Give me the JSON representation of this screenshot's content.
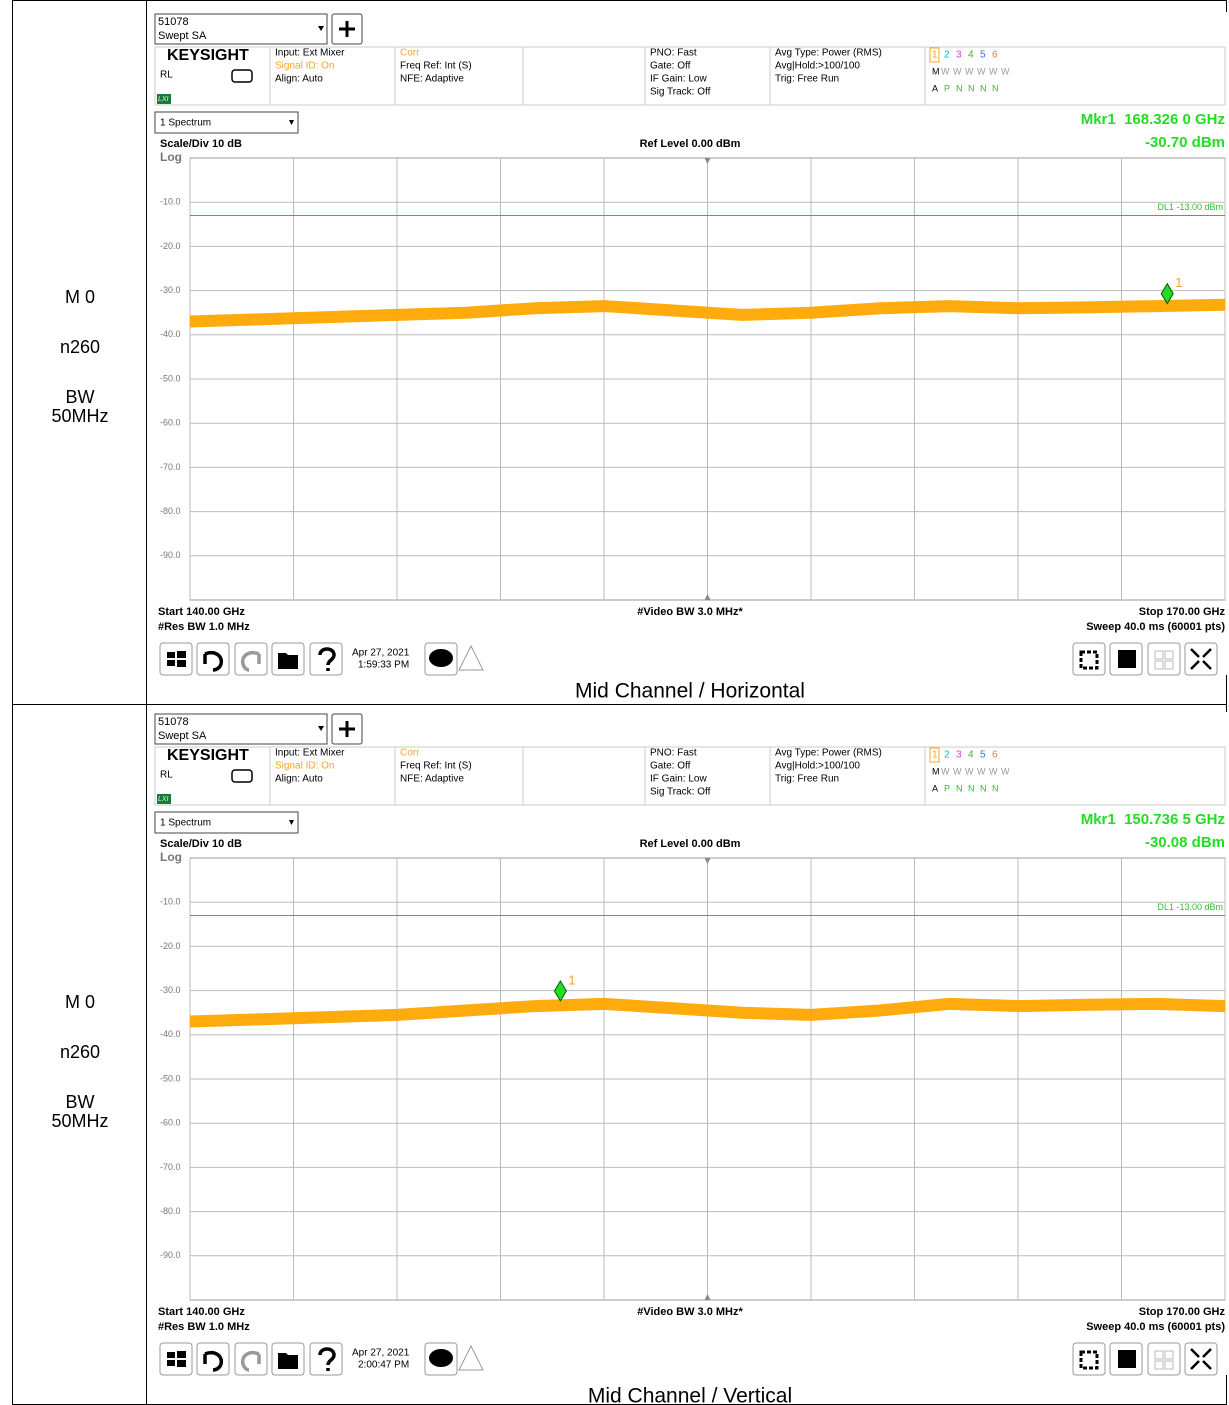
{
  "rows": [
    {
      "labels": [
        "M 0",
        "n260",
        "BW",
        "50MHz"
      ],
      "caption": "Mid Channel / Horizontal",
      "screen": {
        "instrument_id": "51078",
        "mode": "Swept SA",
        "brand": "KEYSIGHT",
        "rl": "RL",
        "lxi": "LXI",
        "status": {
          "input": [
            "Input: Ext Mixer",
            "Signal ID: On",
            "Align: Auto"
          ],
          "corr": [
            "Corr",
            "Freq Ref: Int (S)",
            "NFE: Adaptive"
          ],
          "pno": [
            "PNO: Fast",
            "Gate: Off",
            "IF Gain: Low",
            "Sig Track: Off"
          ],
          "avg": [
            "Avg Type: Power (RMS)",
            "Avg|Hold:>100/100",
            "Trig: Free Run"
          ],
          "traces": [
            "1",
            "2",
            "3",
            "4",
            "5",
            "6"
          ],
          "trace_modes": [
            "M",
            "W",
            "W",
            "W",
            "W",
            "W",
            "W"
          ],
          "detectors": [
            "A",
            "P",
            "N",
            "N",
            "N",
            "N"
          ]
        },
        "window": "1 Spectrum",
        "marker_label": "Mkr1",
        "marker_freq": "168.326 0 GHz",
        "marker_level": "-30.70 dBm",
        "scale": "Scale/Div 10 dB",
        "log": "Log",
        "ref": "Ref Level 0.00 dBm",
        "start": "Start 140.00 GHz",
        "res_bw": "#Res BW 1.0 MHz",
        "video_bw": "#Video BW 3.0 MHz*",
        "stop": "Stop 170.00 GHz",
        "sweep": "Sweep 40.0 ms (60001 pts)",
        "date": "Apr 27, 2021",
        "time": "1:59:33 PM",
        "chart_data": {
          "type": "line",
          "xlim": [
            140,
            170
          ],
          "ylim": [
            -100,
            0
          ],
          "grid": true,
          "xticks": [
            140,
            143,
            146,
            149,
            152,
            155,
            158,
            161,
            164,
            167,
            170
          ],
          "yticks": [
            {
              "value": -10,
              "label": "-10.0"
            },
            {
              "value": -20,
              "label": "-20.0"
            },
            {
              "value": -30,
              "label": "-30.0"
            },
            {
              "value": -40,
              "label": "-40.0"
            },
            {
              "value": -50,
              "label": "-50.0"
            },
            {
              "value": -60,
              "label": "-60.0"
            },
            {
              "value": -70,
              "label": "-70.0"
            },
            {
              "value": -80,
              "label": "-80.0"
            },
            {
              "value": -90,
              "label": "-90.0"
            }
          ],
          "display_line": {
            "value": -13,
            "label": "DL1 -13.00 dBm",
            "color": "#33bb33"
          },
          "marker": {
            "x": 168.326,
            "y": -30.7,
            "label": "1"
          },
          "x": [
            140,
            142,
            144,
            146,
            148,
            150,
            152,
            154,
            156,
            158,
            160,
            162,
            164,
            166,
            168,
            170
          ],
          "series": [
            {
              "color": "#ffa500",
              "values": [
                -37,
                -36.5,
                -36,
                -35.5,
                -35,
                -34,
                -33.5,
                -34.5,
                -35.5,
                -35,
                -34,
                -33.5,
                -34,
                -33.8,
                -33.5,
                -33.2
              ]
            }
          ]
        }
      }
    },
    {
      "labels": [
        "M 0",
        "n260",
        "BW",
        "50MHz"
      ],
      "caption": "Mid Channel / Vertical",
      "screen": {
        "instrument_id": "51078",
        "mode": "Swept SA",
        "brand": "KEYSIGHT",
        "rl": "RL",
        "lxi": "LXI",
        "status": {
          "input": [
            "Input: Ext Mixer",
            "Signal ID: On",
            "Align: Auto"
          ],
          "corr": [
            "Corr",
            "Freq Ref: Int (S)",
            "NFE: Adaptive"
          ],
          "pno": [
            "PNO: Fast",
            "Gate: Off",
            "IF Gain: Low",
            "Sig Track: Off"
          ],
          "avg": [
            "Avg Type: Power (RMS)",
            "Avg|Hold:>100/100",
            "Trig: Free Run"
          ],
          "traces": [
            "1",
            "2",
            "3",
            "4",
            "5",
            "6"
          ],
          "trace_modes": [
            "M",
            "W",
            "W",
            "W",
            "W",
            "W",
            "W"
          ],
          "detectors": [
            "A",
            "P",
            "N",
            "N",
            "N",
            "N"
          ]
        },
        "window": "1 Spectrum",
        "marker_label": "Mkr1",
        "marker_freq": "150.736 5 GHz",
        "marker_level": "-30.08 dBm",
        "scale": "Scale/Div 10 dB",
        "log": "Log",
        "ref": "Ref Level 0.00 dBm",
        "start": "Start 140.00 GHz",
        "res_bw": "#Res BW 1.0 MHz",
        "video_bw": "#Video BW 3.0 MHz*",
        "stop": "Stop 170.00 GHz",
        "sweep": "Sweep 40.0 ms (60001 pts)",
        "date": "Apr 27, 2021",
        "time": "2:00:47 PM",
        "chart_data": {
          "type": "line",
          "xlim": [
            140,
            170
          ],
          "ylim": [
            -100,
            0
          ],
          "grid": true,
          "xticks": [
            140,
            143,
            146,
            149,
            152,
            155,
            158,
            161,
            164,
            167,
            170
          ],
          "yticks": [
            {
              "value": -10,
              "label": "-10.0"
            },
            {
              "value": -20,
              "label": "-20.0"
            },
            {
              "value": -30,
              "label": "-30.0"
            },
            {
              "value": -40,
              "label": "-40.0"
            },
            {
              "value": -50,
              "label": "-50.0"
            },
            {
              "value": -60,
              "label": "-60.0"
            },
            {
              "value": -70,
              "label": "-70.0"
            },
            {
              "value": -80,
              "label": "-80.0"
            },
            {
              "value": -90,
              "label": "-90.0"
            }
          ],
          "display_line": {
            "value": -13,
            "label": "DL1 -13.00 dBm",
            "color": "#33bb33"
          },
          "marker": {
            "x": 150.7365,
            "y": -30.08,
            "label": "1"
          },
          "x": [
            140,
            142,
            144,
            146,
            148,
            150,
            152,
            154,
            156,
            158,
            160,
            162,
            164,
            166,
            168,
            170
          ],
          "series": [
            {
              "color": "#ffa500",
              "values": [
                -37,
                -36.5,
                -36,
                -35.5,
                -34.5,
                -33.5,
                -33,
                -34,
                -35,
                -35.5,
                -34.5,
                -33,
                -33.5,
                -33.2,
                -33,
                -33.5
              ]
            }
          ]
        }
      }
    }
  ]
}
